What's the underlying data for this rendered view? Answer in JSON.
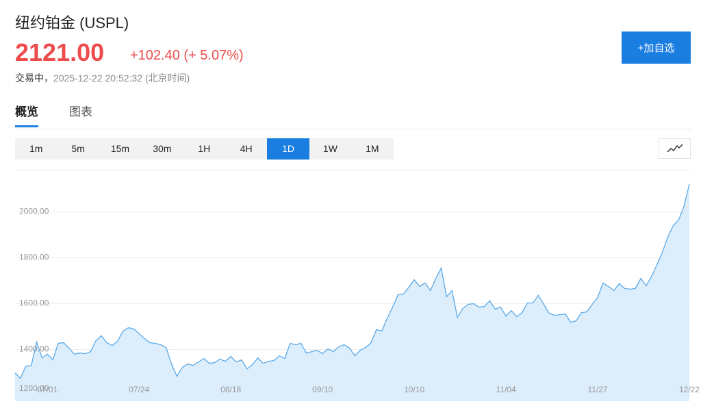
{
  "header": {
    "title": "纽约铂金 (USPL)",
    "price": "2121.00",
    "change": "+102.40 (+ 5.07%)",
    "status": "交易中，",
    "timestamp": "2025-12-22 20:52:32 (北京时间)",
    "watch_button": "+加自选"
  },
  "tabs": [
    "概览",
    "图表"
  ],
  "active_tab": 0,
  "intervals": [
    "1m",
    "5m",
    "15m",
    "30m",
    "1H",
    "4H",
    "1D",
    "1W",
    "1M"
  ],
  "active_interval": 6,
  "chart_data": {
    "type": "area",
    "categories": [
      null,
      null,
      null,
      null,
      null,
      null,
      "07/01",
      null,
      null,
      null,
      null,
      null,
      null,
      null,
      null,
      null,
      null,
      null,
      null,
      null,
      null,
      null,
      null,
      "07/24",
      null,
      null,
      null,
      null,
      null,
      null,
      null,
      null,
      null,
      null,
      null,
      null,
      null,
      null,
      null,
      null,
      "08/18",
      null,
      null,
      null,
      null,
      null,
      null,
      null,
      null,
      null,
      null,
      null,
      null,
      null,
      null,
      null,
      null,
      "09/10",
      null,
      null,
      null,
      null,
      null,
      null,
      null,
      null,
      null,
      null,
      null,
      null,
      null,
      null,
      null,
      null,
      "10/10",
      null,
      null,
      null,
      null,
      null,
      null,
      null,
      null,
      null,
      null,
      null,
      null,
      null,
      null,
      null,
      null,
      "11/04",
      null,
      null,
      null,
      null,
      null,
      null,
      null,
      null,
      null,
      null,
      null,
      null,
      null,
      null,
      null,
      null,
      "11/27",
      null,
      null,
      null,
      null,
      null,
      null,
      null,
      null,
      null,
      null,
      null,
      null,
      null,
      null,
      null,
      null,
      "12/22"
    ],
    "values": [
      1298,
      1275,
      1328,
      1330,
      1433,
      1364,
      1380,
      1355,
      1427,
      1430,
      1406,
      1380,
      1385,
      1382,
      1391,
      1439,
      1460,
      1430,
      1418,
      1436,
      1480,
      1495,
      1490,
      1469,
      1448,
      1430,
      1427,
      1421,
      1409,
      1337,
      1284,
      1322,
      1337,
      1331,
      1346,
      1361,
      1340,
      1343,
      1358,
      1349,
      1370,
      1346,
      1355,
      1316,
      1334,
      1364,
      1340,
      1349,
      1352,
      1373,
      1361,
      1427,
      1421,
      1427,
      1385,
      1391,
      1397,
      1382,
      1403,
      1391,
      1412,
      1421,
      1406,
      1373,
      1397,
      1409,
      1430,
      1487,
      1481,
      1537,
      1585,
      1639,
      1642,
      1672,
      1704,
      1675,
      1690,
      1657,
      1710,
      1755,
      1630,
      1657,
      1540,
      1579,
      1597,
      1600,
      1585,
      1588,
      1612,
      1576,
      1585,
      1546,
      1570,
      1543,
      1561,
      1603,
      1603,
      1636,
      1597,
      1558,
      1549,
      1552,
      1555,
      1519,
      1525,
      1561,
      1564,
      1597,
      1627,
      1690,
      1675,
      1657,
      1687,
      1666,
      1663,
      1666,
      1710,
      1678,
      1719,
      1770,
      1824,
      1890,
      1940,
      1964,
      2024,
      2121
    ],
    "color": "#5aa9e6",
    "fill_color": "#dcedfc",
    "ylim": [
      1175,
      2180
    ],
    "yticks": [
      {
        "value": 1200,
        "label": "1200.00"
      },
      {
        "value": 1400,
        "label": "1400.00"
      },
      {
        "value": 1600,
        "label": "1600.00"
      },
      {
        "value": 1800,
        "label": "1800.00"
      },
      {
        "value": 2000,
        "label": "2000.00"
      }
    ],
    "grid": true
  }
}
